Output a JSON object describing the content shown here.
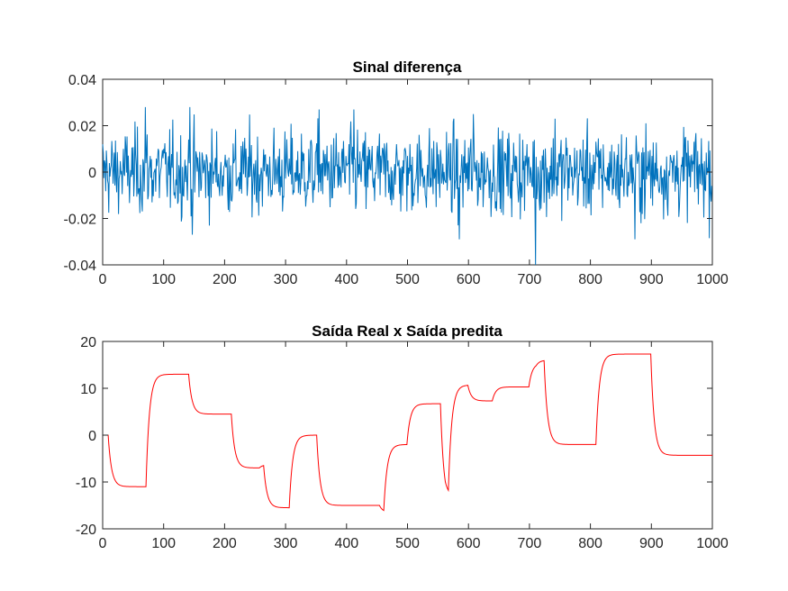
{
  "chart_data": [
    {
      "type": "line",
      "title": "Sinal diferença",
      "xlabel": "",
      "ylabel": "",
      "xlim": [
        0,
        1000
      ],
      "ylim": [
        -0.04,
        0.04
      ],
      "xticks": [
        0,
        100,
        200,
        300,
        400,
        500,
        600,
        700,
        800,
        900,
        1000
      ],
      "yticks": [
        -0.04,
        -0.02,
        0,
        0.02,
        0.04
      ],
      "xtick_labels": [
        "0",
        "100",
        "200",
        "300",
        "400",
        "500",
        "600",
        "700",
        "800",
        "900",
        "1000"
      ],
      "ytick_labels": [
        "-0.04",
        "-0.02",
        "0",
        "0.02",
        "0.04"
      ],
      "series": [
        {
          "name": "diferença",
          "color": "#0072BD",
          "description": "noise centered on 0, std approx 0.009, peaks near 0.028 and a minimum near -0.04 at x approx 710",
          "std": 0.009,
          "n_points": 1000,
          "peaks": [
            [
              70,
              0.028
            ],
            [
              143,
              0.028
            ],
            [
              355,
              0.027
            ],
            [
              412,
              0.027
            ],
            [
              608,
              0.025
            ],
            [
              710,
              -0.041
            ],
            [
              742,
              0.023
            ],
            [
              873,
              -0.029
            ],
            [
              585,
              -0.029
            ],
            [
              147,
              -0.027
            ]
          ]
        }
      ]
    },
    {
      "type": "line",
      "title": "Saída Real x Saída predita",
      "xlabel": "",
      "ylabel": "",
      "xlim": [
        0,
        1000
      ],
      "ylim": [
        -20,
        20
      ],
      "xticks": [
        0,
        100,
        200,
        300,
        400,
        500,
        600,
        700,
        800,
        900,
        1000
      ],
      "yticks": [
        -20,
        -10,
        0,
        10,
        20
      ],
      "xtick_labels": [
        "0",
        "100",
        "200",
        "300",
        "400",
        "500",
        "600",
        "700",
        "800",
        "900",
        "1000"
      ],
      "ytick_labels": [
        "-20",
        "-10",
        "0",
        "10",
        "20"
      ],
      "series": [
        {
          "name": "Saída",
          "color": "#FF0000",
          "steps": [
            [
              0,
              0
            ],
            [
              10,
              -11
            ],
            [
              72,
              13
            ],
            [
              142,
              4.5
            ],
            [
              212,
              -7
            ],
            [
              258,
              -6.3
            ],
            [
              265,
              -15.5
            ],
            [
              307,
              0
            ],
            [
              352,
              -15
            ],
            [
              455,
              -16.5
            ],
            [
              462,
              -2
            ],
            [
              500,
              6.7
            ],
            [
              555,
              -15
            ],
            [
              563,
              -13
            ],
            [
              568,
              10.7
            ],
            [
              600,
              7.3
            ],
            [
              640,
              10.3
            ],
            [
              700,
              15.4
            ],
            [
              712,
              16
            ],
            [
              725,
              -2
            ],
            [
              810,
              17.3
            ],
            [
              900,
              -4.3
            ],
            [
              1000,
              -4
            ]
          ],
          "time_constant": 6
        }
      ]
    }
  ]
}
